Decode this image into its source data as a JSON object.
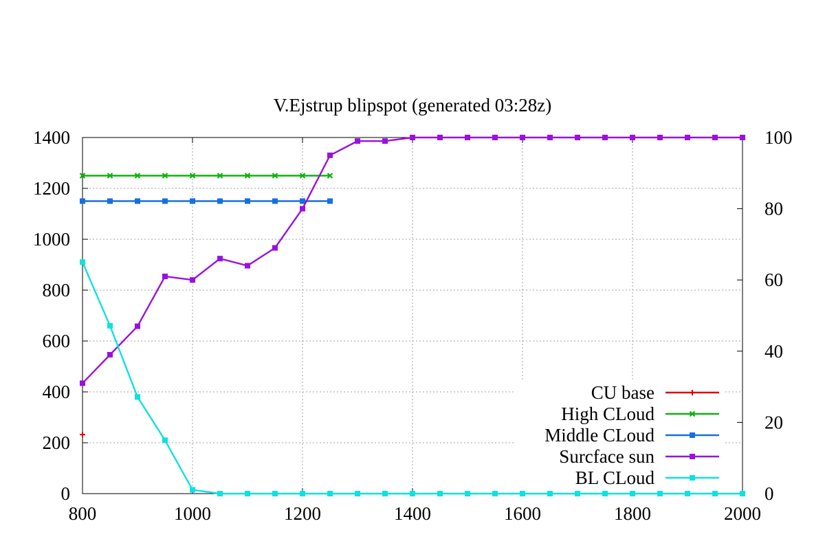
{
  "chart_data": {
    "type": "line",
    "title": "V.Ejstrup  blipspot  (generated  03:28z)",
    "xlabel": "",
    "ylabel": "",
    "y2label": "",
    "xlim": [
      800,
      2000
    ],
    "ylim": [
      0,
      1400
    ],
    "y2lim": [
      0,
      100
    ],
    "xticks": [
      800,
      1000,
      1200,
      1400,
      1600,
      1800,
      2000
    ],
    "yticks": [
      0,
      200,
      400,
      600,
      800,
      1000,
      1200,
      1400
    ],
    "y2ticks": [
      0,
      20,
      40,
      60,
      80,
      100
    ],
    "grid": true,
    "legend_position": "bottom-right",
    "series": [
      {
        "name": "CU  base",
        "axis": "y",
        "color": "#e00000",
        "marker": "plus",
        "x": [
          800
        ],
        "y": [
          232
        ]
      },
      {
        "name": "High  CLoud",
        "axis": "y",
        "color": "#10b010",
        "marker": "cross",
        "x": [
          800,
          850,
          900,
          950,
          1000,
          1050,
          1100,
          1150,
          1200,
          1250
        ],
        "y": [
          1250,
          1250,
          1250,
          1250,
          1250,
          1250,
          1250,
          1250,
          1250,
          1250
        ]
      },
      {
        "name": "Middle  CLoud",
        "axis": "y",
        "color": "#1570e0",
        "marker": "square",
        "x": [
          800,
          850,
          900,
          950,
          1000,
          1050,
          1100,
          1150,
          1200,
          1250
        ],
        "y": [
          1150,
          1150,
          1150,
          1150,
          1150,
          1150,
          1150,
          1150,
          1150,
          1150
        ]
      },
      {
        "name": "Surcface  sun",
        "axis": "y2",
        "color": "#9a10e0",
        "marker": "square",
        "x": [
          800,
          850,
          900,
          950,
          1000,
          1050,
          1100,
          1150,
          1200,
          1250,
          1300,
          1350,
          1400,
          1450,
          1500,
          1550,
          1600,
          1650,
          1700,
          1750,
          1800,
          1850,
          1900,
          1950,
          2000
        ],
        "y": [
          31,
          39,
          47,
          61,
          60,
          66,
          64,
          69,
          80,
          95,
          99,
          99,
          100,
          100,
          100,
          100,
          100,
          100,
          100,
          100,
          100,
          100,
          100,
          100,
          100
        ]
      },
      {
        "name": "BL  CLoud",
        "axis": "y",
        "color": "#10e0e0",
        "marker": "square",
        "x": [
          800,
          850,
          900,
          950,
          1000,
          1050,
          1100,
          1150,
          1200,
          1250,
          1300,
          1350,
          1400,
          1450,
          1500,
          1550,
          1600,
          1650,
          1700,
          1750,
          1800,
          1850,
          1900,
          1950,
          2000
        ],
        "y": [
          910,
          660,
          380,
          210,
          15,
          0,
          0,
          0,
          0,
          0,
          0,
          0,
          0,
          0,
          0,
          0,
          0,
          0,
          0,
          0,
          0,
          0,
          0,
          0,
          0
        ]
      }
    ]
  }
}
